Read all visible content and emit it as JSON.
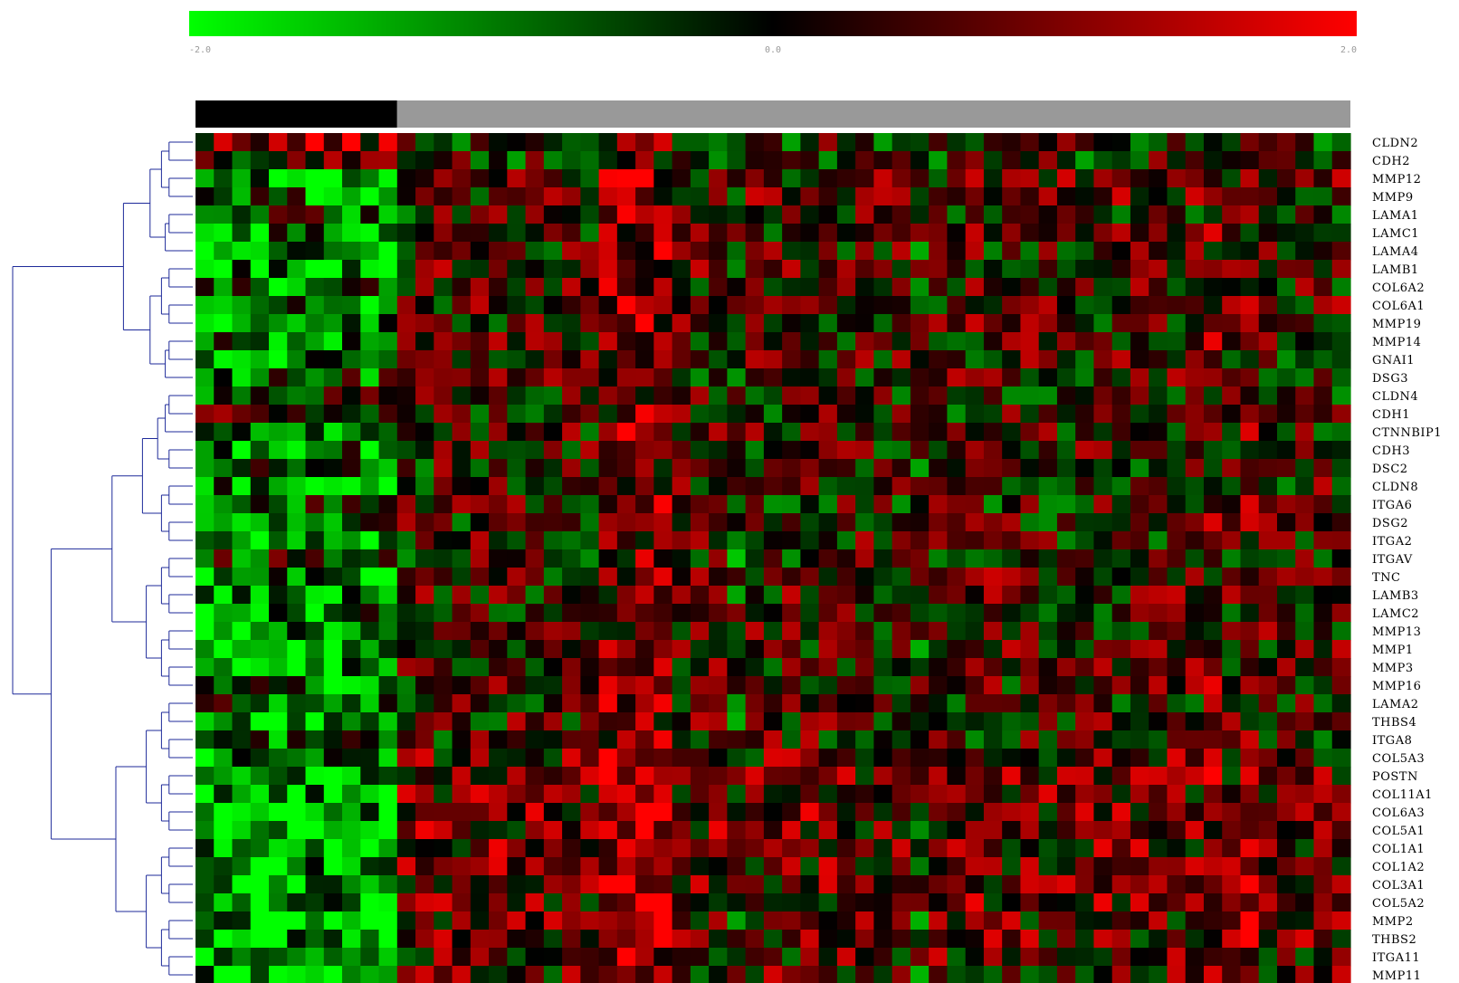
{
  "chart_data": {
    "type": "heatmap",
    "title": "",
    "color_scale": {
      "min_label": "-2.0",
      "mid_label": "0.0",
      "max_label": "2.0",
      "min": -2.0,
      "max": 2.0,
      "low_color": "#00ff00",
      "mid_color": "#000000",
      "high_color": "#ff0000"
    },
    "column_groups": [
      {
        "count": 11,
        "color": "#000000"
      },
      {
        "count": 52,
        "color": "#999999"
      }
    ],
    "columns": 63,
    "rows": [
      "CLDN2",
      "CDH2",
      "MMP12",
      "MMP9",
      "LAMA1",
      "LAMC1",
      "LAMA4",
      "LAMB1",
      "COL6A2",
      "COL6A1",
      "MMP19",
      "MMP14",
      "GNAI1",
      "DSG3",
      "CLDN4",
      "CDH1",
      "CTNNBIP1",
      "CDH3",
      "DSC2",
      "CLDN8",
      "ITGA6",
      "DSG2",
      "ITGA2",
      "ITGAV",
      "TNC",
      "LAMB3",
      "LAMC2",
      "MMP13",
      "MMP1",
      "MMP3",
      "MMP16",
      "LAMA2",
      "THBS4",
      "ITGA8",
      "COL5A3",
      "POSTN",
      "COL11A1",
      "COL6A3",
      "COL5A1",
      "COL1A1",
      "COL1A2",
      "COL3A1",
      "COL5A2",
      "MMP2",
      "THBS2",
      "ITGA11",
      "MMP11"
    ],
    "row_profiles": [
      {
        "gene": "CLDN2",
        "group1_mean": 1.0,
        "group2_mean": 0.0
      },
      {
        "gene": "CDH2",
        "group1_mean": 0.3,
        "group2_mean": 0.0
      },
      {
        "gene": "MMP12",
        "group1_mean": -1.2,
        "group2_mean": 0.4
      },
      {
        "gene": "MMP9",
        "group1_mean": -0.8,
        "group2_mean": 0.4
      },
      {
        "gene": "LAMA1",
        "group1_mean": -0.5,
        "group2_mean": 0.1
      },
      {
        "gene": "LAMC1",
        "group1_mean": -1.0,
        "group2_mean": 0.3
      },
      {
        "gene": "LAMA4",
        "group1_mean": -1.2,
        "group2_mean": 0.3
      },
      {
        "gene": "LAMB1",
        "group1_mean": -1.0,
        "group2_mean": 0.3
      },
      {
        "gene": "COL6A2",
        "group1_mean": -0.8,
        "group2_mean": 0.3
      },
      {
        "gene": "COL6A1",
        "group1_mean": -0.8,
        "group2_mean": 0.3
      },
      {
        "gene": "MMP19",
        "group1_mean": -1.0,
        "group2_mean": 0.3
      },
      {
        "gene": "MMP14",
        "group1_mean": -0.8,
        "group2_mean": 0.3
      },
      {
        "gene": "GNAI1",
        "group1_mean": -1.2,
        "group2_mean": 0.2
      },
      {
        "gene": "DSG3",
        "group1_mean": -0.6,
        "group2_mean": 0.2
      },
      {
        "gene": "CLDN4",
        "group1_mean": -0.3,
        "group2_mean": 0.1
      },
      {
        "gene": "CDH1",
        "group1_mean": 0.0,
        "group2_mean": 0.1
      },
      {
        "gene": "CTNNBIP1",
        "group1_mean": -0.6,
        "group2_mean": 0.2
      },
      {
        "gene": "CDH3",
        "group1_mean": -0.8,
        "group2_mean": 0.2
      },
      {
        "gene": "DSC2",
        "group1_mean": -0.6,
        "group2_mean": 0.2
      },
      {
        "gene": "CLDN8",
        "group1_mean": -1.0,
        "group2_mean": 0.2
      },
      {
        "gene": "ITGA6",
        "group1_mean": -0.3,
        "group2_mean": 0.1
      },
      {
        "gene": "DSG2",
        "group1_mean": -0.6,
        "group2_mean": 0.2
      },
      {
        "gene": "ITGA2",
        "group1_mean": -0.8,
        "group2_mean": 0.2
      },
      {
        "gene": "ITGAV",
        "group1_mean": -0.3,
        "group2_mean": 0.1
      },
      {
        "gene": "TNC",
        "group1_mean": -1.2,
        "group2_mean": 0.3
      },
      {
        "gene": "LAMB3",
        "group1_mean": -1.0,
        "group2_mean": 0.3
      },
      {
        "gene": "LAMC2",
        "group1_mean": -1.0,
        "group2_mean": 0.3
      },
      {
        "gene": "MMP13",
        "group1_mean": -1.2,
        "group2_mean": 0.3
      },
      {
        "gene": "MMP1",
        "group1_mean": -1.3,
        "group2_mean": 0.3
      },
      {
        "gene": "MMP3",
        "group1_mean": -1.2,
        "group2_mean": 0.3
      },
      {
        "gene": "MMP16",
        "group1_mean": -0.8,
        "group2_mean": 0.3
      },
      {
        "gene": "LAMA2",
        "group1_mean": -0.6,
        "group2_mean": 0.2
      },
      {
        "gene": "THBS4",
        "group1_mean": -1.4,
        "group2_mean": 0.3
      },
      {
        "gene": "ITGA8",
        "group1_mean": -0.6,
        "group2_mean": 0.2
      },
      {
        "gene": "COL5A3",
        "group1_mean": -1.2,
        "group2_mean": 0.5
      },
      {
        "gene": "POSTN",
        "group1_mean": -1.4,
        "group2_mean": 0.6
      },
      {
        "gene": "COL11A1",
        "group1_mean": -1.4,
        "group2_mean": 0.6
      },
      {
        "gene": "COL6A3",
        "group1_mean": -1.3,
        "group2_mean": 0.6
      },
      {
        "gene": "COL5A1",
        "group1_mean": -1.3,
        "group2_mean": 0.6
      },
      {
        "gene": "COL1A1",
        "group1_mean": -1.3,
        "group2_mean": 0.6
      },
      {
        "gene": "COL1A2",
        "group1_mean": -1.3,
        "group2_mean": 0.6
      },
      {
        "gene": "COL3A1",
        "group1_mean": -1.3,
        "group2_mean": 0.6
      },
      {
        "gene": "COL5A2",
        "group1_mean": -1.3,
        "group2_mean": 0.6
      },
      {
        "gene": "MMP2",
        "group1_mean": -1.2,
        "group2_mean": 0.4
      },
      {
        "gene": "THBS2",
        "group1_mean": -1.2,
        "group2_mean": 0.5
      },
      {
        "gene": "ITGA11",
        "group1_mean": -1.0,
        "group2_mean": 0.4
      },
      {
        "gene": "MMP11",
        "group1_mean": -1.0,
        "group2_mean": 0.4
      }
    ],
    "column_effects": [
      {
        "column": 23,
        "value": 1.0
      },
      {
        "column": 24,
        "value": 1.2
      },
      {
        "column": 25,
        "value": 1.2
      },
      {
        "column": 26,
        "value": 1.0
      },
      {
        "column": 30,
        "value": -0.8
      },
      {
        "column": 40,
        "value": -0.8
      },
      {
        "column": 56,
        "value": 0.6
      },
      {
        "column": 58,
        "value": 0.6
      }
    ],
    "dendrogram": [
      [
        "CLDN2",
        "CDH2"
      ],
      [
        "MMP12",
        "MMP9"
      ],
      [
        "LAMA4",
        "LAMB1"
      ],
      [
        "COL6A2",
        "COL6A1"
      ],
      [
        "MMP19",
        "MMP14"
      ],
      [
        "GNAI1",
        "DSG3"
      ],
      [
        "CDH1",
        "CTNNBIP1"
      ],
      [
        "CDH3",
        "DSC2"
      ],
      [
        "ITGA6",
        "DSG2"
      ],
      [
        "ITGA2",
        "ITGAV"
      ],
      [
        "LAMB3",
        "LAMC2"
      ],
      [
        "MMP13",
        "MMP1"
      ],
      [
        "MMP3",
        "MMP16"
      ],
      [
        "LAMA2",
        "THBS4"
      ],
      [
        "COL11A1",
        "COL6A3"
      ],
      [
        "COL1A1",
        "COL1A2"
      ],
      [
        "COL3A1",
        "COL5A2"
      ],
      [
        "MMP2",
        "THBS2"
      ],
      [
        "ITGA11",
        "MMP11"
      ]
    ]
  }
}
